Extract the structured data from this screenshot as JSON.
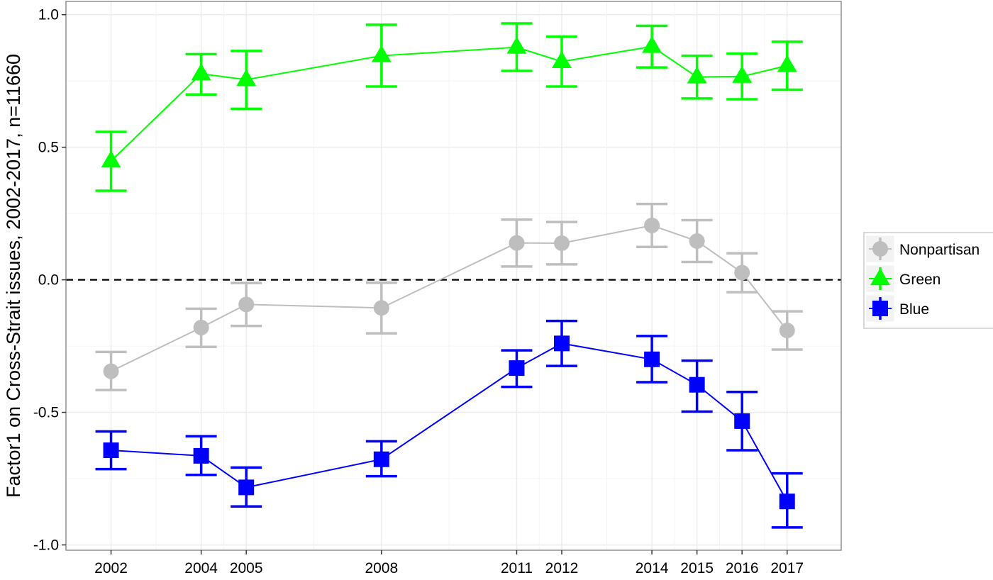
{
  "chart_data": {
    "type": "line",
    "title": "",
    "xlabel": "",
    "ylabel": "Factor1 on Cross-Strait issues, 2002-2017, n=11660",
    "x": [
      2002,
      2004,
      2005,
      2008,
      2011,
      2012,
      2014,
      2015,
      2016,
      2017
    ],
    "x_tick_labels": [
      "2002",
      "2004",
      "2005",
      "2008",
      "2011",
      "2012",
      "2014",
      "2015",
      "2016",
      "2017"
    ],
    "xlim": [
      2001.0,
      2018.2
    ],
    "ylim": [
      -1.02,
      1.05
    ],
    "y_ticks": [
      1.0,
      0.5,
      0.0,
      -0.5,
      -1.0
    ],
    "y_tick_labels": [
      "1.0",
      "0.5",
      "0.0",
      "-0.5",
      "-1.0"
    ],
    "reference_line": {
      "y": 0.0,
      "style": "dashed",
      "color": "#000000"
    },
    "grid": true,
    "legend_position": "right",
    "series": [
      {
        "name": "Nonpartisan",
        "marker": "circle",
        "color": "#BEBEBE",
        "values": [
          -0.345,
          -0.18,
          -0.093,
          -0.106,
          0.139,
          0.138,
          0.205,
          0.146,
          0.027,
          -0.191
        ],
        "lower": [
          -0.416,
          -0.253,
          -0.174,
          -0.202,
          0.05,
          0.058,
          0.124,
          0.067,
          -0.047,
          -0.263
        ],
        "upper": [
          -0.272,
          -0.109,
          -0.012,
          -0.011,
          0.227,
          0.218,
          0.286,
          0.225,
          0.1,
          -0.119
        ]
      },
      {
        "name": "Green",
        "marker": "triangle",
        "color": "#00FF00",
        "values": [
          0.448,
          0.777,
          0.755,
          0.845,
          0.877,
          0.823,
          0.88,
          0.765,
          0.767,
          0.808
        ],
        "lower": [
          0.336,
          0.699,
          0.645,
          0.729,
          0.788,
          0.729,
          0.801,
          0.684,
          0.681,
          0.717
        ],
        "upper": [
          0.558,
          0.851,
          0.863,
          0.962,
          0.967,
          0.917,
          0.958,
          0.845,
          0.853,
          0.898
        ]
      },
      {
        "name": "Blue",
        "marker": "square",
        "color": "#0000FF",
        "values": [
          -0.643,
          -0.664,
          -0.783,
          -0.677,
          -0.333,
          -0.24,
          -0.3,
          -0.396,
          -0.533,
          -0.836
        ],
        "lower": [
          -0.714,
          -0.736,
          -0.855,
          -0.741,
          -0.404,
          -0.325,
          -0.386,
          -0.497,
          -0.643,
          -0.934
        ],
        "upper": [
          -0.572,
          -0.59,
          -0.708,
          -0.609,
          -0.266,
          -0.155,
          -0.212,
          -0.305,
          -0.423,
          -0.73
        ]
      }
    ]
  }
}
